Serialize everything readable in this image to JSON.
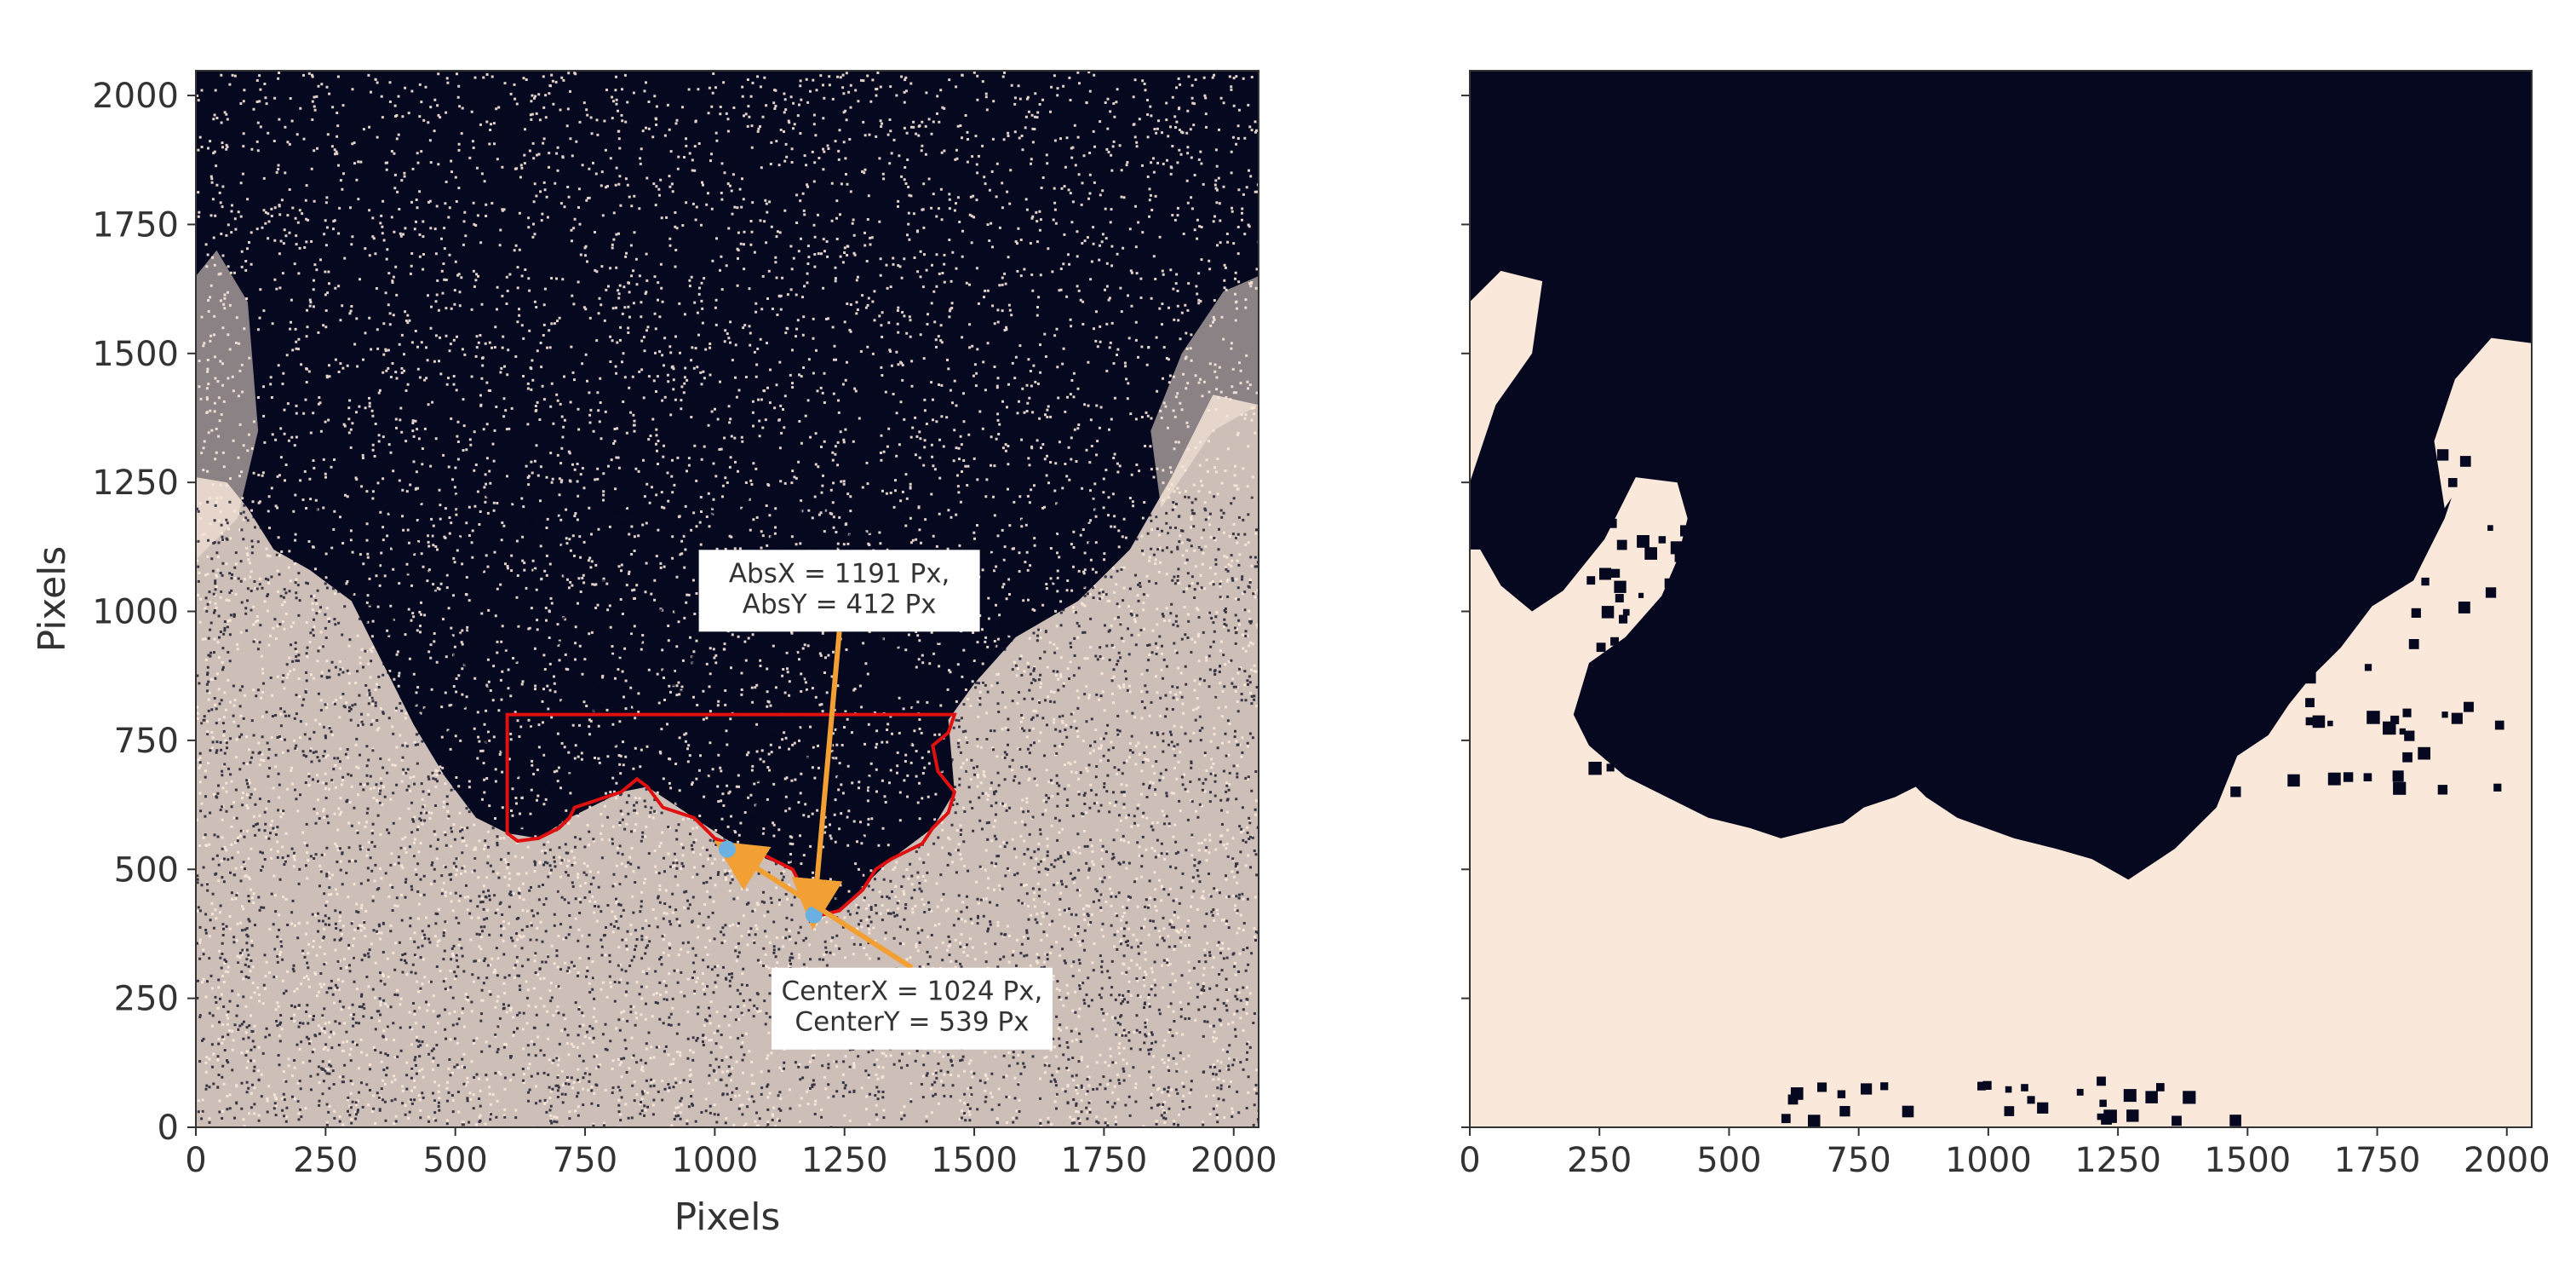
{
  "chart_data": [
    {
      "type": "heatmap",
      "panel": "left",
      "title": "",
      "xlabel": "Pixels",
      "ylabel": "Pixels",
      "xlim": [
        0,
        2048
      ],
      "ylim": [
        0,
        2048
      ],
      "xticks": [
        0,
        250,
        500,
        750,
        1000,
        1250,
        1500,
        1750,
        2000
      ],
      "yticks": [
        0,
        250,
        500,
        750,
        1000,
        1250,
        1500,
        1750,
        2000
      ],
      "grid": false,
      "colormap": {
        "background": "#05081e",
        "foreground": "#fae8da"
      },
      "roi_outline_color": "#e01010",
      "roi_outline": [
        [
          600,
          800
        ],
        [
          1462,
          800
        ],
        [
          1450,
          765
        ],
        [
          1420,
          740
        ],
        [
          1430,
          690
        ],
        [
          1462,
          650
        ],
        [
          1450,
          610
        ],
        [
          1420,
          580
        ],
        [
          1400,
          550
        ],
        [
          1340,
          520
        ],
        [
          1310,
          500
        ],
        [
          1285,
          460
        ],
        [
          1240,
          420
        ],
        [
          1200,
          410
        ],
        [
          1180,
          440
        ],
        [
          1150,
          500
        ],
        [
          1090,
          530
        ],
        [
          1050,
          540
        ],
        [
          1000,
          560
        ],
        [
          960,
          600
        ],
        [
          900,
          620
        ],
        [
          870,
          660
        ],
        [
          850,
          675
        ],
        [
          820,
          650
        ],
        [
          790,
          640
        ],
        [
          760,
          630
        ],
        [
          730,
          620
        ],
        [
          720,
          600
        ],
        [
          700,
          580
        ],
        [
          660,
          560
        ],
        [
          620,
          555
        ],
        [
          600,
          570
        ]
      ],
      "annotations": [
        {
          "label_lines": [
            "AbsX = 1191 Px,",
            "AbsY = 412 Px"
          ],
          "point": [
            1191,
            412
          ],
          "text_anchor": [
            1240,
            1040
          ],
          "arrow_color": "#f2a034"
        },
        {
          "label_lines": [
            "CenterX = 1024 Px,",
            "CenterY = 539 Px"
          ],
          "point": [
            1024,
            539
          ],
          "text_anchor": [
            1380,
            230
          ],
          "arrow_color": "#f2a034"
        }
      ]
    },
    {
      "type": "heatmap",
      "panel": "right",
      "title": "",
      "xlabel": "",
      "ylabel": "",
      "xlim": [
        0,
        2048
      ],
      "ylim": [
        0,
        2048
      ],
      "xticks": [
        0,
        250,
        500,
        750,
        1000,
        1250,
        1500,
        1750,
        2000
      ],
      "yticks": [
        0,
        250,
        500,
        750,
        1000,
        1250,
        1500,
        1750,
        2000
      ],
      "ytick_labels_shown": false,
      "grid": false,
      "colormap": {
        "background": "#05081e",
        "foreground": "#fae8da"
      }
    }
  ]
}
